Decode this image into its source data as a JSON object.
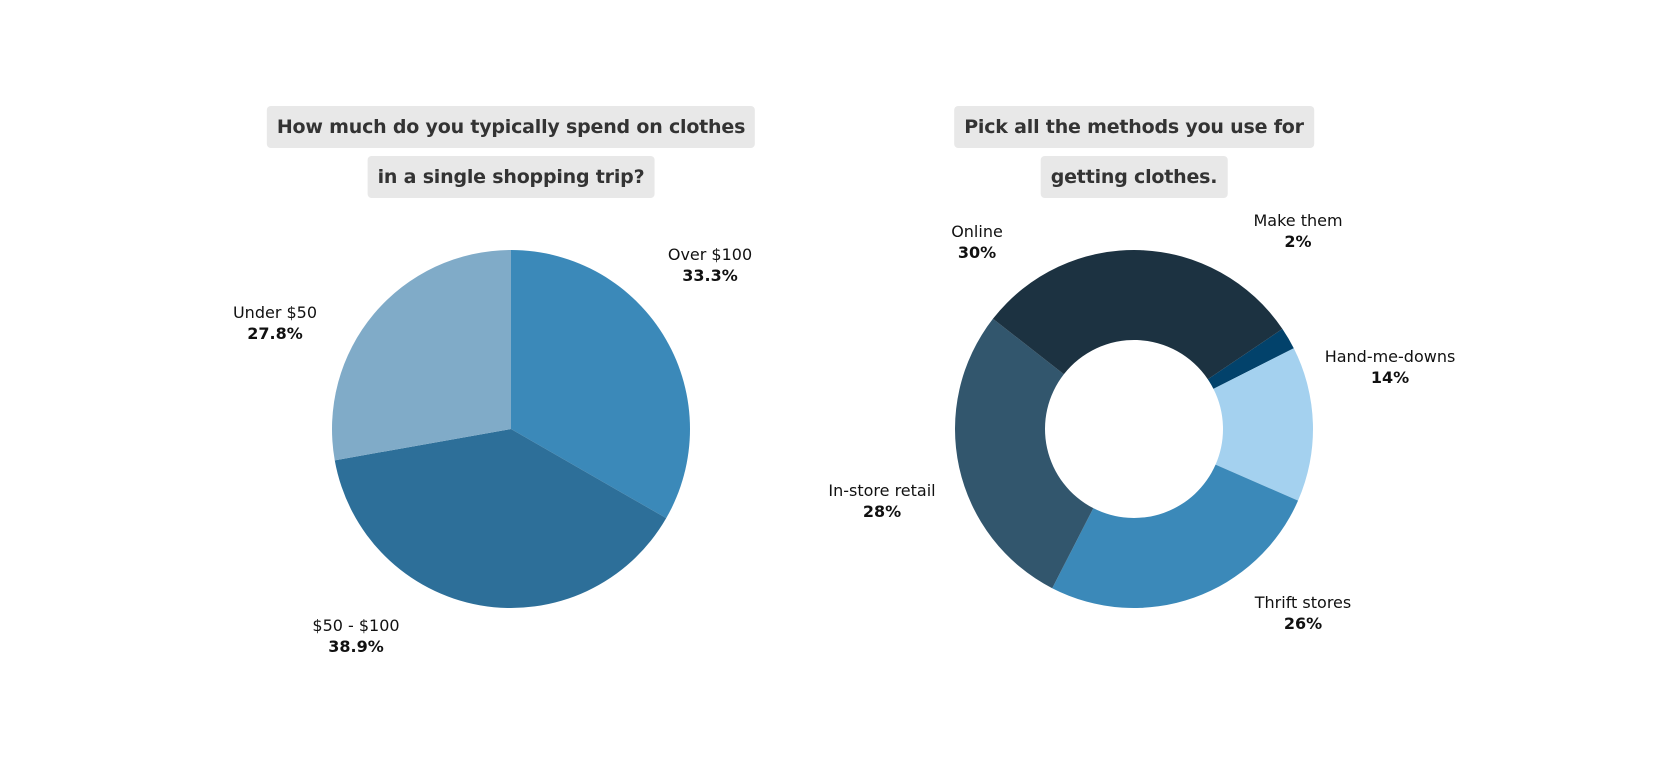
{
  "chart_data": [
    {
      "type": "pie",
      "title_lines": [
        "How much do you typically spend on clothes",
        "in a single shopping trip?"
      ],
      "slices": [
        {
          "label": "Over $100",
          "value_text": "33.3%",
          "value": 33.3,
          "color": "#3b89b9"
        },
        {
          "label": "$50 - $100",
          "value_text": "38.9%",
          "value": 38.9,
          "color": "#2d6f99"
        },
        {
          "label": "Under $50",
          "value_text": "27.8%",
          "value": 27.8,
          "color": "#80abc8"
        }
      ]
    },
    {
      "type": "pie",
      "donut": true,
      "title_lines": [
        "Pick all the methods you use for",
        "getting clothes."
      ],
      "slices": [
        {
          "label": "Make them",
          "value_text": "2%",
          "value": 2,
          "color": "#02426b"
        },
        {
          "label": "Hand-me-downs",
          "value_text": "14%",
          "value": 14,
          "color": "#a4d1ef"
        },
        {
          "label": "Thrift stores",
          "value_text": "26%",
          "value": 26,
          "color": "#3b89b9"
        },
        {
          "label": "In-store retail",
          "value_text": "28%",
          "value": 28,
          "color": "#32566d"
        },
        {
          "label": "Online",
          "value_text": "30%",
          "value": 30,
          "color": "#1c3241"
        }
      ]
    }
  ]
}
